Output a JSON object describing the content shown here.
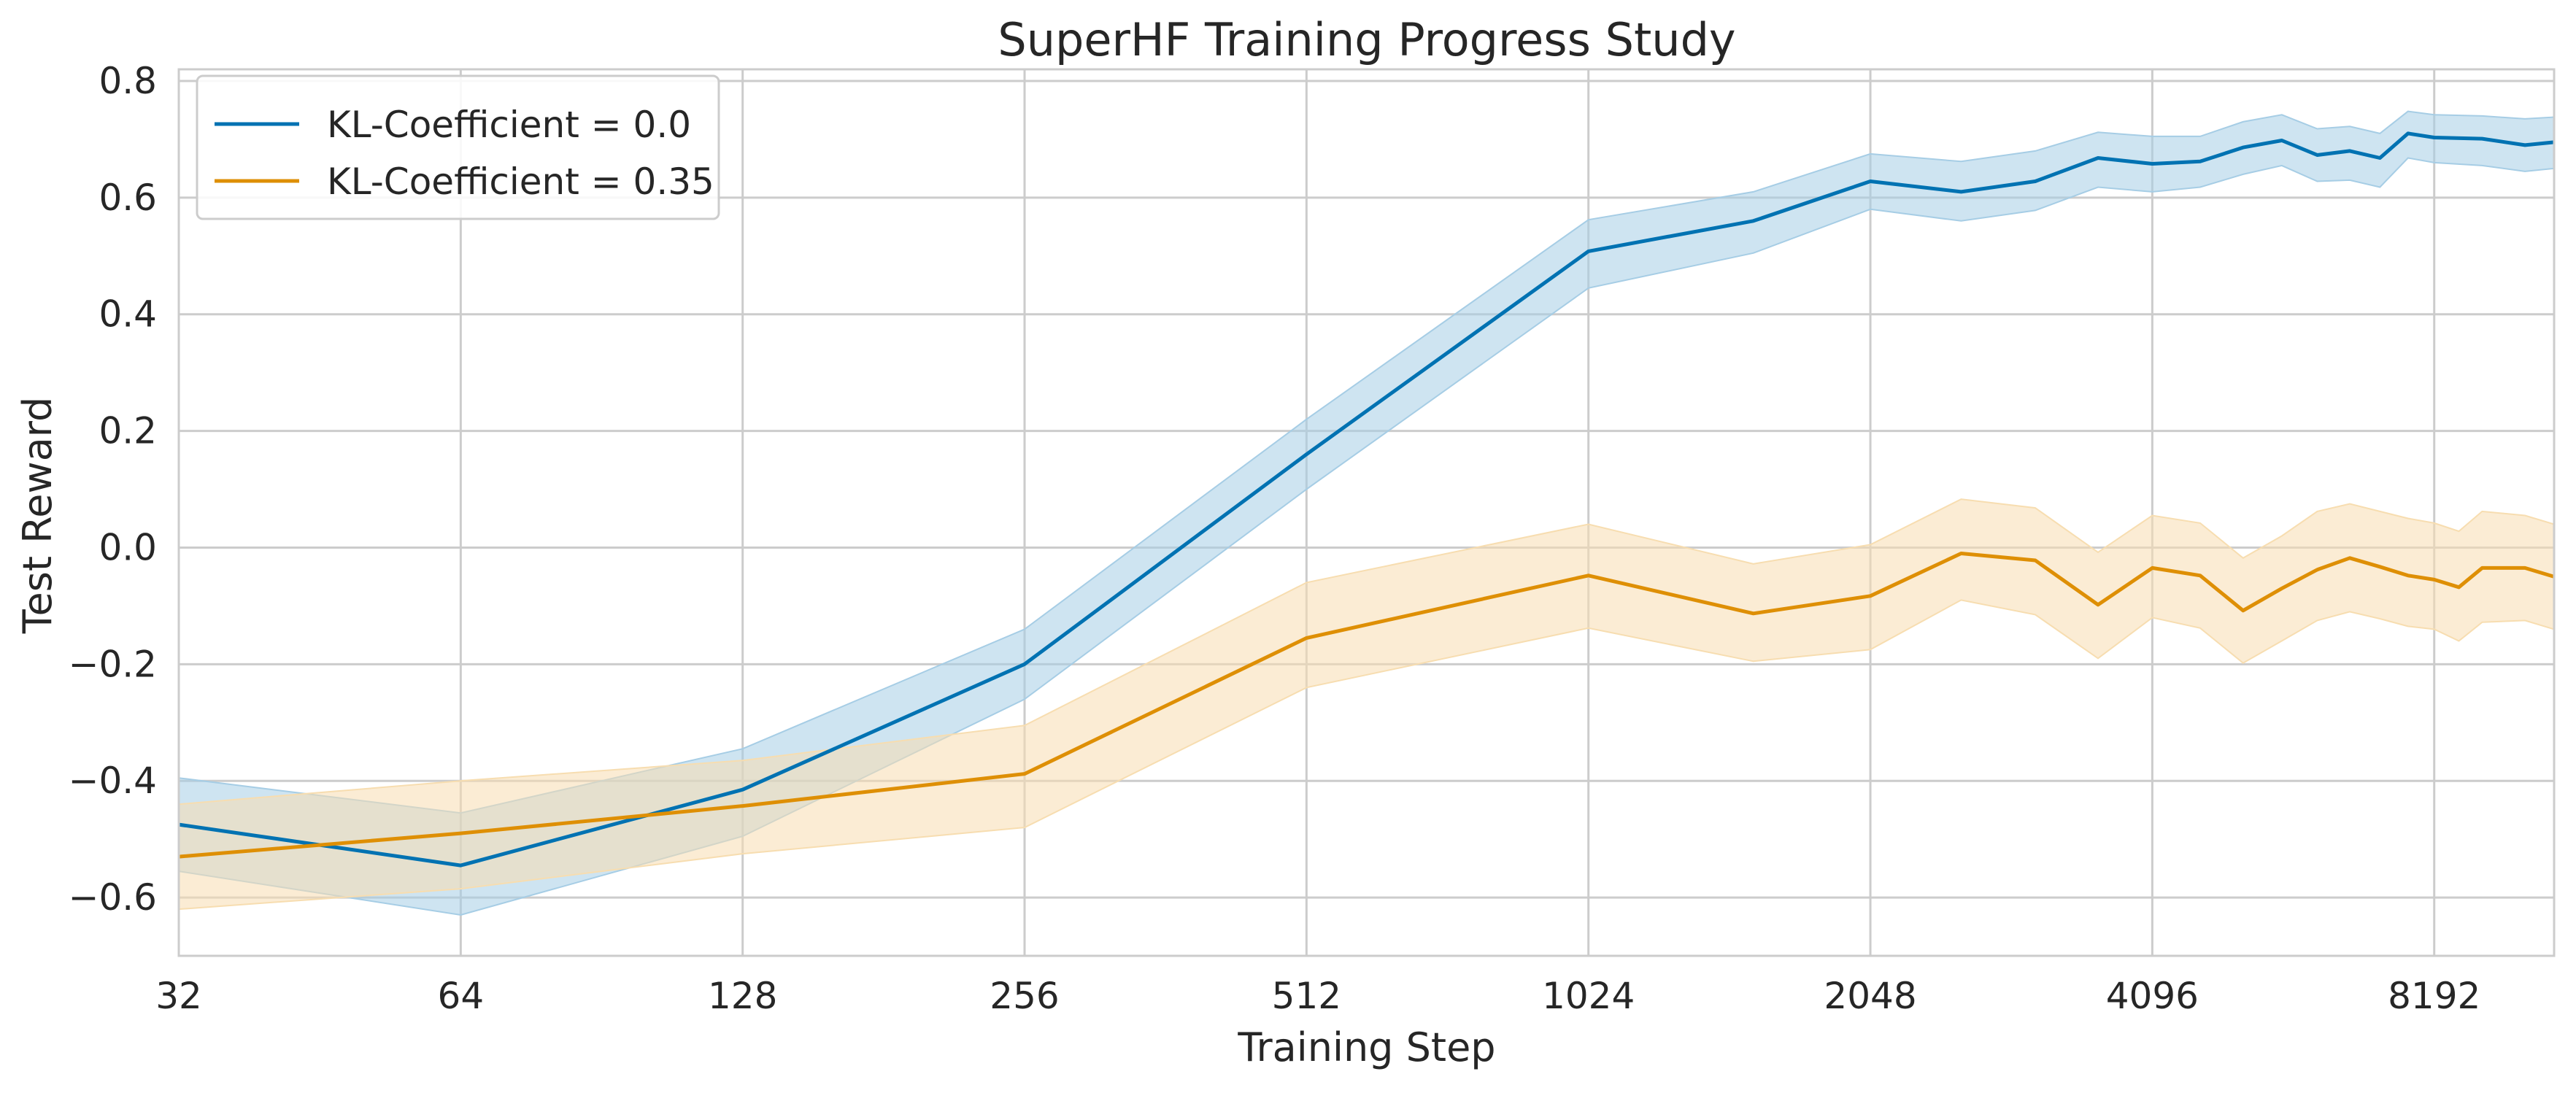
{
  "chart_data": {
    "type": "line",
    "title": "SuperHF Training Progress Study",
    "xlabel": "Training Step",
    "ylabel": "Test Reward",
    "x_scale": "log2",
    "xlim": [
      32,
      11000
    ],
    "ylim": [
      -0.7,
      0.82
    ],
    "x_ticks": [
      32,
      64,
      128,
      256,
      512,
      1024,
      2048,
      4096,
      8192
    ],
    "x_tick_labels": [
      "32",
      "64",
      "128",
      "256",
      "512",
      "1024",
      "2048",
      "4096",
      "8192"
    ],
    "y_ticks": [
      -0.6,
      -0.4,
      -0.2,
      0.0,
      0.2,
      0.4,
      0.6,
      0.8
    ],
    "y_tick_labels": [
      "−0.6",
      "−0.4",
      "−0.2",
      "0.0",
      "0.2",
      "0.4",
      "0.6",
      "0.8"
    ],
    "grid": true,
    "legend_position": "top-left",
    "series": [
      {
        "name": "KL-Coefficient = 0.0",
        "color": "#0072b2",
        "band_color": "#a6cde5",
        "points": [
          [
            32,
            -0.475,
            -0.555,
            -0.395
          ],
          [
            64,
            -0.545,
            -0.63,
            -0.455
          ],
          [
            128,
            -0.415,
            -0.495,
            -0.345
          ],
          [
            256,
            -0.2,
            -0.26,
            -0.14
          ],
          [
            512,
            0.16,
            0.1,
            0.22
          ],
          [
            1024,
            0.508,
            0.445,
            0.562
          ],
          [
            1536,
            0.56,
            0.505,
            0.61
          ],
          [
            2048,
            0.628,
            0.58,
            0.675
          ],
          [
            2560,
            0.61,
            0.56,
            0.662
          ],
          [
            3072,
            0.628,
            0.578,
            0.68
          ],
          [
            3584,
            0.668,
            0.618,
            0.712
          ],
          [
            4096,
            0.658,
            0.61,
            0.705
          ],
          [
            4608,
            0.662,
            0.618,
            0.705
          ],
          [
            5120,
            0.686,
            0.64,
            0.73
          ],
          [
            5632,
            0.698,
            0.655,
            0.742
          ],
          [
            6144,
            0.673,
            0.628,
            0.718
          ],
          [
            6656,
            0.68,
            0.63,
            0.722
          ],
          [
            7168,
            0.668,
            0.618,
            0.71
          ],
          [
            7680,
            0.71,
            0.668,
            0.748
          ],
          [
            8192,
            0.703,
            0.66,
            0.742
          ],
          [
            9216,
            0.701,
            0.655,
            0.74
          ],
          [
            10240,
            0.69,
            0.645,
            0.735
          ],
          [
            11000,
            0.695,
            0.65,
            0.738
          ]
        ]
      },
      {
        "name": "KL-Coefficient = 0.35",
        "color": "#de8f05",
        "band_color": "#f7ddb0",
        "points": [
          [
            32,
            -0.53,
            -0.62,
            -0.44
          ],
          [
            64,
            -0.49,
            -0.585,
            -0.4
          ],
          [
            128,
            -0.443,
            -0.525,
            -0.365
          ],
          [
            256,
            -0.388,
            -0.48,
            -0.305
          ],
          [
            512,
            -0.155,
            -0.24,
            -0.06
          ],
          [
            1024,
            -0.048,
            -0.138,
            0.04
          ],
          [
            1536,
            -0.113,
            -0.195,
            -0.028
          ],
          [
            2048,
            -0.083,
            -0.175,
            0.005
          ],
          [
            2560,
            -0.01,
            -0.09,
            0.083
          ],
          [
            3072,
            -0.022,
            -0.115,
            0.068
          ],
          [
            3584,
            -0.098,
            -0.19,
            -0.008
          ],
          [
            4096,
            -0.035,
            -0.12,
            0.055
          ],
          [
            4608,
            -0.048,
            -0.138,
            0.042
          ],
          [
            5120,
            -0.108,
            -0.198,
            -0.018
          ],
          [
            5632,
            -0.07,
            -0.16,
            0.02
          ],
          [
            6144,
            -0.038,
            -0.125,
            0.062
          ],
          [
            6656,
            -0.018,
            -0.11,
            0.075
          ],
          [
            7168,
            -0.033,
            -0.122,
            0.062
          ],
          [
            7680,
            -0.048,
            -0.135,
            0.05
          ],
          [
            8192,
            -0.055,
            -0.14,
            0.042
          ],
          [
            8704,
            -0.068,
            -0.16,
            0.028
          ],
          [
            9216,
            -0.035,
            -0.128,
            0.062
          ],
          [
            10240,
            -0.035,
            -0.125,
            0.055
          ],
          [
            11000,
            -0.05,
            -0.14,
            0.04
          ]
        ]
      }
    ]
  }
}
